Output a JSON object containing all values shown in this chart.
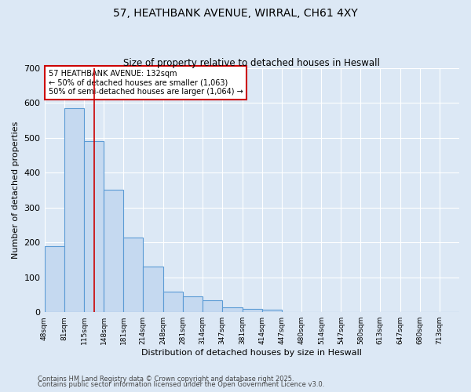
{
  "title": "57, HEATHBANK AVENUE, WIRRAL, CH61 4XY",
  "subtitle": "Size of property relative to detached houses in Heswall",
  "xlabel": "Distribution of detached houses by size in Heswall",
  "ylabel": "Number of detached properties",
  "footnote1": "Contains HM Land Registry data © Crown copyright and database right 2025.",
  "footnote2": "Contains public sector information licensed under the Open Government Licence v3.0.",
  "bin_labels": [
    "48sqm",
    "81sqm",
    "115sqm",
    "148sqm",
    "181sqm",
    "214sqm",
    "248sqm",
    "281sqm",
    "314sqm",
    "347sqm",
    "381sqm",
    "414sqm",
    "447sqm",
    "480sqm",
    "514sqm",
    "547sqm",
    "580sqm",
    "613sqm",
    "647sqm",
    "680sqm",
    "713sqm"
  ],
  "bar_heights": [
    190,
    585,
    490,
    352,
    215,
    130,
    60,
    45,
    35,
    15,
    10,
    8,
    0,
    0,
    0,
    0,
    0,
    0,
    0,
    0,
    0
  ],
  "bar_color": "#c5d9f0",
  "bar_edge_color": "#5b9bd5",
  "bar_edge_width": 0.8,
  "vline_x": 132,
  "vline_color": "#cc0000",
  "annotation_title": "57 HEATHBANK AVENUE: 132sqm",
  "annotation_line1": "← 50% of detached houses are smaller (1,063)",
  "annotation_line2": "50% of semi-detached houses are larger (1,064) →",
  "annotation_box_color": "#ffffff",
  "annotation_box_edge": "#cc0000",
  "ylim": [
    0,
    700
  ],
  "yticks": [
    0,
    100,
    200,
    300,
    400,
    500,
    600,
    700
  ],
  "bg_color": "#dce8f5",
  "plot_bg_color": "#dce8f5",
  "grid_color": "#ffffff",
  "bin_edges": [
    48,
    81,
    115,
    148,
    181,
    214,
    248,
    281,
    314,
    347,
    381,
    414,
    447,
    480,
    514,
    547,
    580,
    613,
    647,
    680,
    713,
    746
  ],
  "title_fontsize": 10,
  "subtitle_fontsize": 8.5,
  "ylabel_fontsize": 8,
  "xlabel_fontsize": 8,
  "ytick_fontsize": 8,
  "xtick_fontsize": 6.5,
  "annot_fontsize": 7,
  "footnote_fontsize": 6
}
